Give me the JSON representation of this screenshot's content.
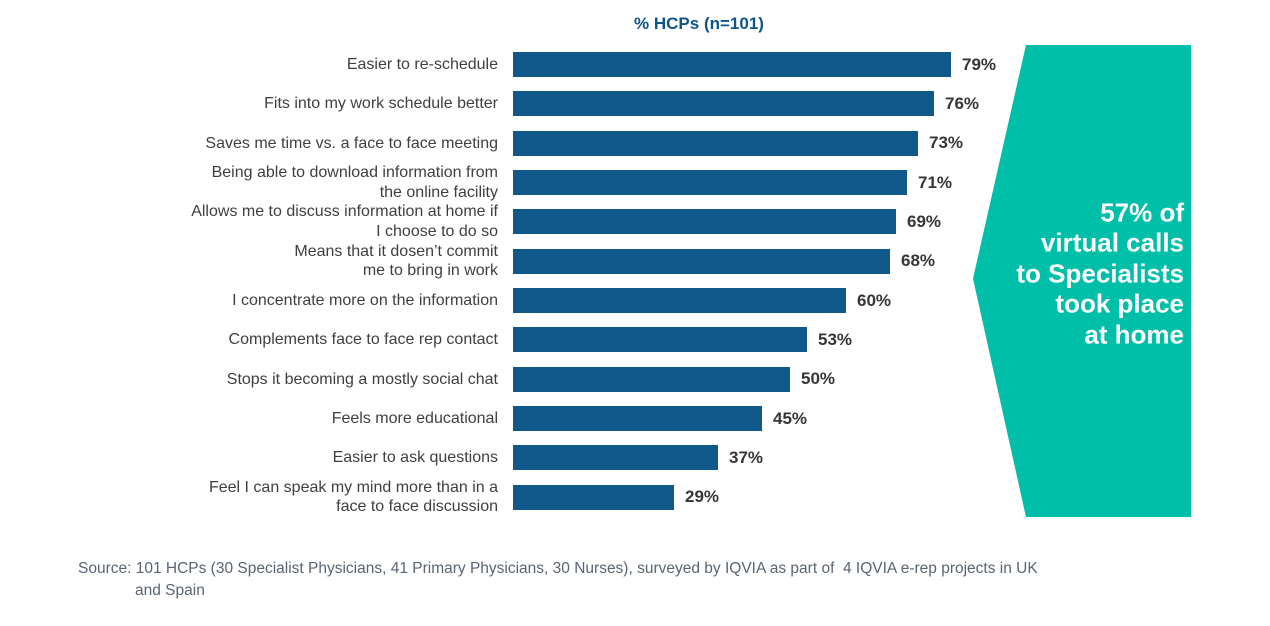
{
  "chart_data": {
    "type": "bar",
    "orientation": "horizontal",
    "title": "% HCPs (n=101)",
    "categories": [
      "Easier to re-schedule",
      "Fits into my work schedule better",
      "Saves me time vs. a face to face meeting",
      "Being able to download information from the online facility",
      "Allows me to discuss information at home if I choose to do so",
      "Means that it dosen’t commit me to bring in work",
      "I concentrate more on the information",
      "Complements face to face rep contact",
      "Stops it becoming a mostly social chat",
      "Feels more educational",
      "Easier to ask questions",
      "Feel I can speak my mind more than in a face to face discussion"
    ],
    "display_labels": [
      "Easier to re-schedule",
      "Fits into my work schedule better",
      "Saves me time vs. a face to face meeting",
      "Being able to download information from\nthe online facility",
      "Allows me to discuss information at home if\nI choose to do so",
      "Means that it dosen’t commit\nme to bring in work",
      "I concentrate more on the information",
      "Complements face to face rep contact",
      "Stops it becoming a mostly social chat",
      "Feels more educational",
      "Easier to ask questions",
      "Feel I can speak my mind more than in a\nface to face discussion"
    ],
    "values": [
      79,
      76,
      73,
      71,
      69,
      68,
      60,
      53,
      50,
      45,
      37,
      29
    ],
    "value_labels": [
      "79%",
      "76%",
      "73%",
      "71%",
      "69%",
      "68%",
      "60%",
      "53%",
      "50%",
      "45%",
      "37%",
      "29%"
    ],
    "xlabel": "",
    "ylabel": "",
    "xlim": [
      0,
      80
    ],
    "grid": false,
    "legend": "none",
    "bar_color": "#11588A"
  },
  "callout": {
    "text": "57% of\nvirtual calls\nto Specialists\ntook place\nat home",
    "bg_color": "#00BFA8",
    "text_color": "#FFFFFF"
  },
  "source": {
    "text": "Source: 101 HCPs (30 Specialist Physicians, 41 Primary Physicians, 30 Nurses), surveyed by IQVIA as part of  4 IQVIA e-rep projects in UK\nand Spain"
  },
  "colors": {
    "background": "#FFFFFF",
    "bar": "#11588A",
    "title_text": "#0E568A",
    "category_text": "#3F3F3F",
    "value_text": "#363636",
    "callout_bg": "#00BFA8",
    "callout_text": "#FFFFFF",
    "source_text": "#5A6474"
  }
}
